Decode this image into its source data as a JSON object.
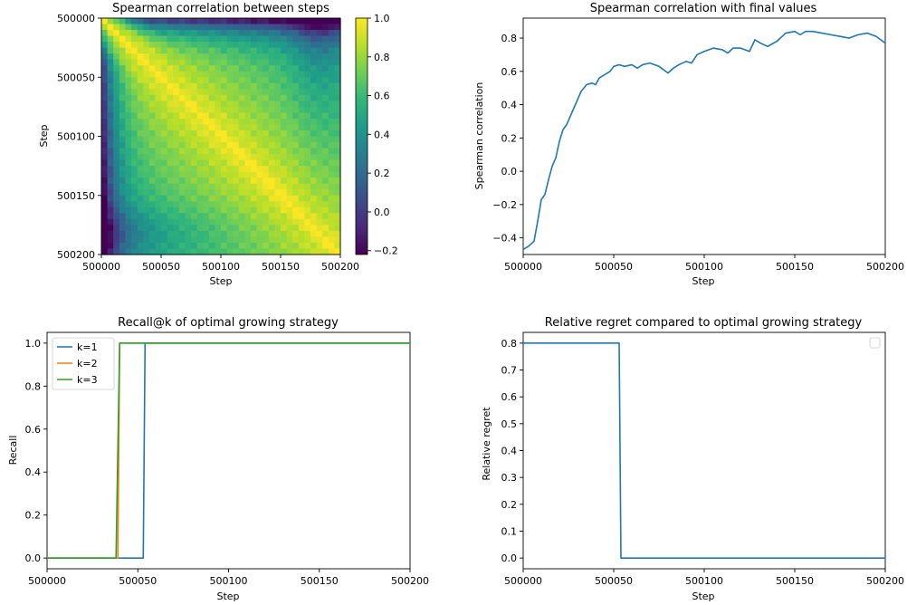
{
  "chart_data": [
    {
      "type": "heatmap",
      "title": "Spearman correlation between steps",
      "xlabel": "Step",
      "ylabel": "Step",
      "x_range": [
        500000,
        500200
      ],
      "y_range": [
        500000,
        500200
      ],
      "xticks": [
        500000,
        500050,
        500100,
        500150,
        500200
      ],
      "yticks": [
        500000,
        500050,
        500100,
        500150,
        500200
      ],
      "colorbar": {
        "range": [
          -0.22,
          1.0
        ],
        "ticks": [
          -0.2,
          0.0,
          0.2,
          0.4,
          0.6,
          0.8,
          1.0
        ],
        "colormap": "viridis"
      },
      "grid": false,
      "structure": "symmetric matrix; diagonal = 1.0; correlation falls with step distance; low values near first steps",
      "first_row_values": {
        "x": [
          500000,
          500010,
          500025,
          500050,
          500075,
          500100,
          500125,
          500150,
          500175,
          500200
        ],
        "value": [
          1.0,
          0.9,
          0.75,
          0.45,
          0.3,
          0.25,
          0.2,
          0.1,
          0.05,
          0.1
        ]
      }
    },
    {
      "type": "line",
      "title": "Spearman correlation with final values",
      "xlabel": "Step",
      "ylabel": "Spearman correlation",
      "xlim": [
        500000,
        500200
      ],
      "ylim": [
        -0.5,
        0.92
      ],
      "xticks": [
        500000,
        500050,
        500100,
        500150,
        500200
      ],
      "yticks": [
        -0.4,
        -0.2,
        0.0,
        0.2,
        0.4,
        0.6,
        0.8
      ],
      "grid": false,
      "series": [
        {
          "color": "#1f77b4",
          "x": [
            500000,
            500003,
            500006,
            500008,
            500010,
            500012,
            500014,
            500016,
            500018,
            500020,
            500022,
            500024,
            500026,
            500028,
            500030,
            500032,
            500035,
            500038,
            500040,
            500042,
            500045,
            500048,
            500050,
            500053,
            500056,
            500060,
            500063,
            500066,
            500070,
            500075,
            500080,
            500083,
            500086,
            500090,
            500093,
            500096,
            500100,
            500105,
            500110,
            500113,
            500116,
            500120,
            500125,
            500128,
            500131,
            500135,
            500140,
            500145,
            500150,
            500153,
            500156,
            500160,
            500165,
            500170,
            500175,
            500180,
            500185,
            500190,
            500195,
            500200
          ],
          "y": [
            -0.47,
            -0.45,
            -0.42,
            -0.3,
            -0.17,
            -0.14,
            -0.05,
            0.03,
            0.08,
            0.18,
            0.25,
            0.28,
            0.33,
            0.38,
            0.43,
            0.48,
            0.52,
            0.53,
            0.52,
            0.56,
            0.58,
            0.6,
            0.63,
            0.64,
            0.63,
            0.64,
            0.62,
            0.64,
            0.65,
            0.63,
            0.59,
            0.62,
            0.64,
            0.66,
            0.65,
            0.7,
            0.72,
            0.74,
            0.73,
            0.71,
            0.74,
            0.74,
            0.72,
            0.79,
            0.77,
            0.75,
            0.78,
            0.83,
            0.84,
            0.82,
            0.84,
            0.84,
            0.83,
            0.82,
            0.81,
            0.8,
            0.82,
            0.83,
            0.81,
            0.77
          ]
        }
      ]
    },
    {
      "type": "line",
      "title": "Recall@k of optimal growing strategy",
      "xlabel": "Step",
      "ylabel": "Recall",
      "xlim": [
        500000,
        500200
      ],
      "ylim": [
        -0.05,
        1.05
      ],
      "xticks": [
        500000,
        500050,
        500100,
        500150,
        500200
      ],
      "yticks": [
        0.0,
        0.2,
        0.4,
        0.6,
        0.8,
        1.0
      ],
      "grid": false,
      "legend": "top-left",
      "series": [
        {
          "name": "k=1",
          "color": "#1f77b4",
          "x": [
            500000,
            500053,
            500054,
            500200
          ],
          "y": [
            0,
            0,
            1,
            1
          ]
        },
        {
          "name": "k=2",
          "color": "#ff7f0e",
          "x": [
            500000,
            500039,
            500040,
            500050,
            500051,
            500200
          ],
          "y": [
            0,
            0,
            1,
            1,
            1,
            1
          ]
        },
        {
          "name": "k=3",
          "color": "#2ca02c",
          "x": [
            500000,
            500038,
            500040,
            500200
          ],
          "y": [
            0,
            0,
            1,
            1
          ]
        }
      ]
    },
    {
      "type": "line",
      "title": "Relative regret compared to optimal growing strategy",
      "xlabel": "Step",
      "ylabel": "Relative regret",
      "xlim": [
        500000,
        500200
      ],
      "ylim": [
        -0.04,
        0.84
      ],
      "xticks": [
        500000,
        500050,
        500100,
        500150,
        500200
      ],
      "yticks": [
        0.0,
        0.1,
        0.2,
        0.3,
        0.4,
        0.5,
        0.6,
        0.7,
        0.8
      ],
      "grid": false,
      "legend": "top-right (empty)",
      "series": [
        {
          "color": "#1f77b4",
          "x": [
            500000,
            500053,
            500054,
            500200
          ],
          "y": [
            0.8,
            0.8,
            0,
            0
          ]
        }
      ]
    }
  ]
}
